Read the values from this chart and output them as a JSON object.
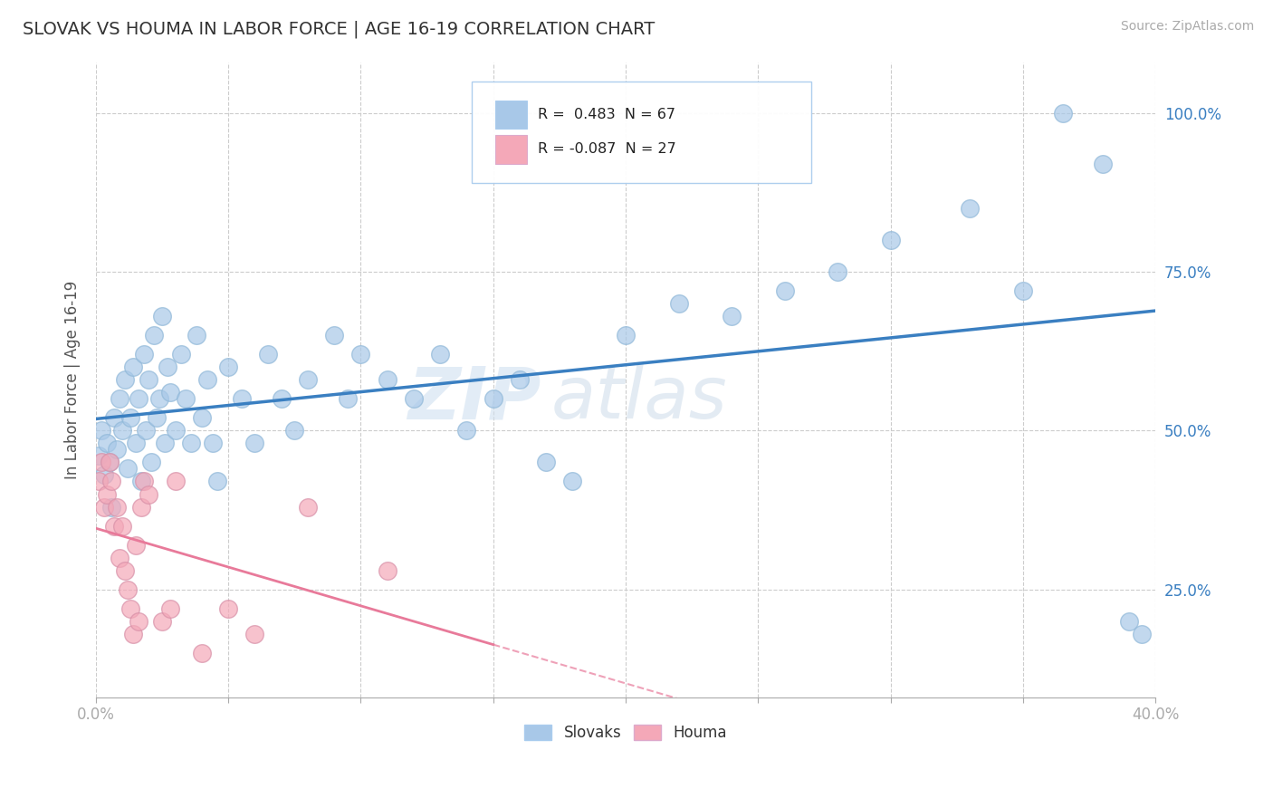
{
  "title": "SLOVAK VS HOUMA IN LABOR FORCE | AGE 16-19 CORRELATION CHART",
  "source_text": "Source: ZipAtlas.com",
  "ylabel": "In Labor Force | Age 16-19",
  "yaxis_labels": [
    "25.0%",
    "50.0%",
    "75.0%",
    "100.0%"
  ],
  "yaxis_values": [
    0.25,
    0.5,
    0.75,
    1.0
  ],
  "xmin": 0.0,
  "xmax": 0.4,
  "ymin": 0.08,
  "ymax": 1.08,
  "legend_r_slovak": " 0.483",
  "legend_n_slovak": "67",
  "legend_r_houma": "-0.087",
  "legend_n_houma": "27",
  "slovak_color": "#a8c8e8",
  "houma_color": "#f4a8b8",
  "slovak_line_color": "#3a7fc1",
  "houma_line_color": "#e87a9a",
  "watermark_zip": "ZIP",
  "watermark_atlas": "atlas",
  "background_color": "#ffffff",
  "plot_bg_color": "#ffffff",
  "grid_color": "#cccccc",
  "slovak_scatter": [
    [
      0.001,
      0.46
    ],
    [
      0.002,
      0.5
    ],
    [
      0.003,
      0.43
    ],
    [
      0.004,
      0.48
    ],
    [
      0.005,
      0.45
    ],
    [
      0.006,
      0.38
    ],
    [
      0.007,
      0.52
    ],
    [
      0.008,
      0.47
    ],
    [
      0.009,
      0.55
    ],
    [
      0.01,
      0.5
    ],
    [
      0.011,
      0.58
    ],
    [
      0.012,
      0.44
    ],
    [
      0.013,
      0.52
    ],
    [
      0.014,
      0.6
    ],
    [
      0.015,
      0.48
    ],
    [
      0.016,
      0.55
    ],
    [
      0.017,
      0.42
    ],
    [
      0.018,
      0.62
    ],
    [
      0.019,
      0.5
    ],
    [
      0.02,
      0.58
    ],
    [
      0.021,
      0.45
    ],
    [
      0.022,
      0.65
    ],
    [
      0.023,
      0.52
    ],
    [
      0.024,
      0.55
    ],
    [
      0.025,
      0.68
    ],
    [
      0.026,
      0.48
    ],
    [
      0.027,
      0.6
    ],
    [
      0.028,
      0.56
    ],
    [
      0.03,
      0.5
    ],
    [
      0.032,
      0.62
    ],
    [
      0.034,
      0.55
    ],
    [
      0.036,
      0.48
    ],
    [
      0.038,
      0.65
    ],
    [
      0.04,
      0.52
    ],
    [
      0.042,
      0.58
    ],
    [
      0.044,
      0.48
    ],
    [
      0.046,
      0.42
    ],
    [
      0.05,
      0.6
    ],
    [
      0.055,
      0.55
    ],
    [
      0.06,
      0.48
    ],
    [
      0.065,
      0.62
    ],
    [
      0.07,
      0.55
    ],
    [
      0.075,
      0.5
    ],
    [
      0.08,
      0.58
    ],
    [
      0.09,
      0.65
    ],
    [
      0.095,
      0.55
    ],
    [
      0.1,
      0.62
    ],
    [
      0.11,
      0.58
    ],
    [
      0.12,
      0.55
    ],
    [
      0.13,
      0.62
    ],
    [
      0.14,
      0.5
    ],
    [
      0.15,
      0.55
    ],
    [
      0.16,
      0.58
    ],
    [
      0.17,
      0.45
    ],
    [
      0.18,
      0.42
    ],
    [
      0.2,
      0.65
    ],
    [
      0.22,
      0.7
    ],
    [
      0.24,
      0.68
    ],
    [
      0.26,
      0.72
    ],
    [
      0.28,
      0.75
    ],
    [
      0.3,
      0.8
    ],
    [
      0.33,
      0.85
    ],
    [
      0.35,
      0.72
    ],
    [
      0.365,
      1.0
    ],
    [
      0.38,
      0.92
    ],
    [
      0.39,
      0.2
    ],
    [
      0.395,
      0.18
    ]
  ],
  "houma_scatter": [
    [
      0.001,
      0.42
    ],
    [
      0.002,
      0.45
    ],
    [
      0.003,
      0.38
    ],
    [
      0.004,
      0.4
    ],
    [
      0.005,
      0.45
    ],
    [
      0.006,
      0.42
    ],
    [
      0.007,
      0.35
    ],
    [
      0.008,
      0.38
    ],
    [
      0.009,
      0.3
    ],
    [
      0.01,
      0.35
    ],
    [
      0.011,
      0.28
    ],
    [
      0.012,
      0.25
    ],
    [
      0.013,
      0.22
    ],
    [
      0.014,
      0.18
    ],
    [
      0.015,
      0.32
    ],
    [
      0.016,
      0.2
    ],
    [
      0.017,
      0.38
    ],
    [
      0.018,
      0.42
    ],
    [
      0.02,
      0.4
    ],
    [
      0.025,
      0.2
    ],
    [
      0.028,
      0.22
    ],
    [
      0.03,
      0.42
    ],
    [
      0.04,
      0.15
    ],
    [
      0.05,
      0.22
    ],
    [
      0.06,
      0.18
    ],
    [
      0.08,
      0.38
    ],
    [
      0.11,
      0.28
    ]
  ]
}
